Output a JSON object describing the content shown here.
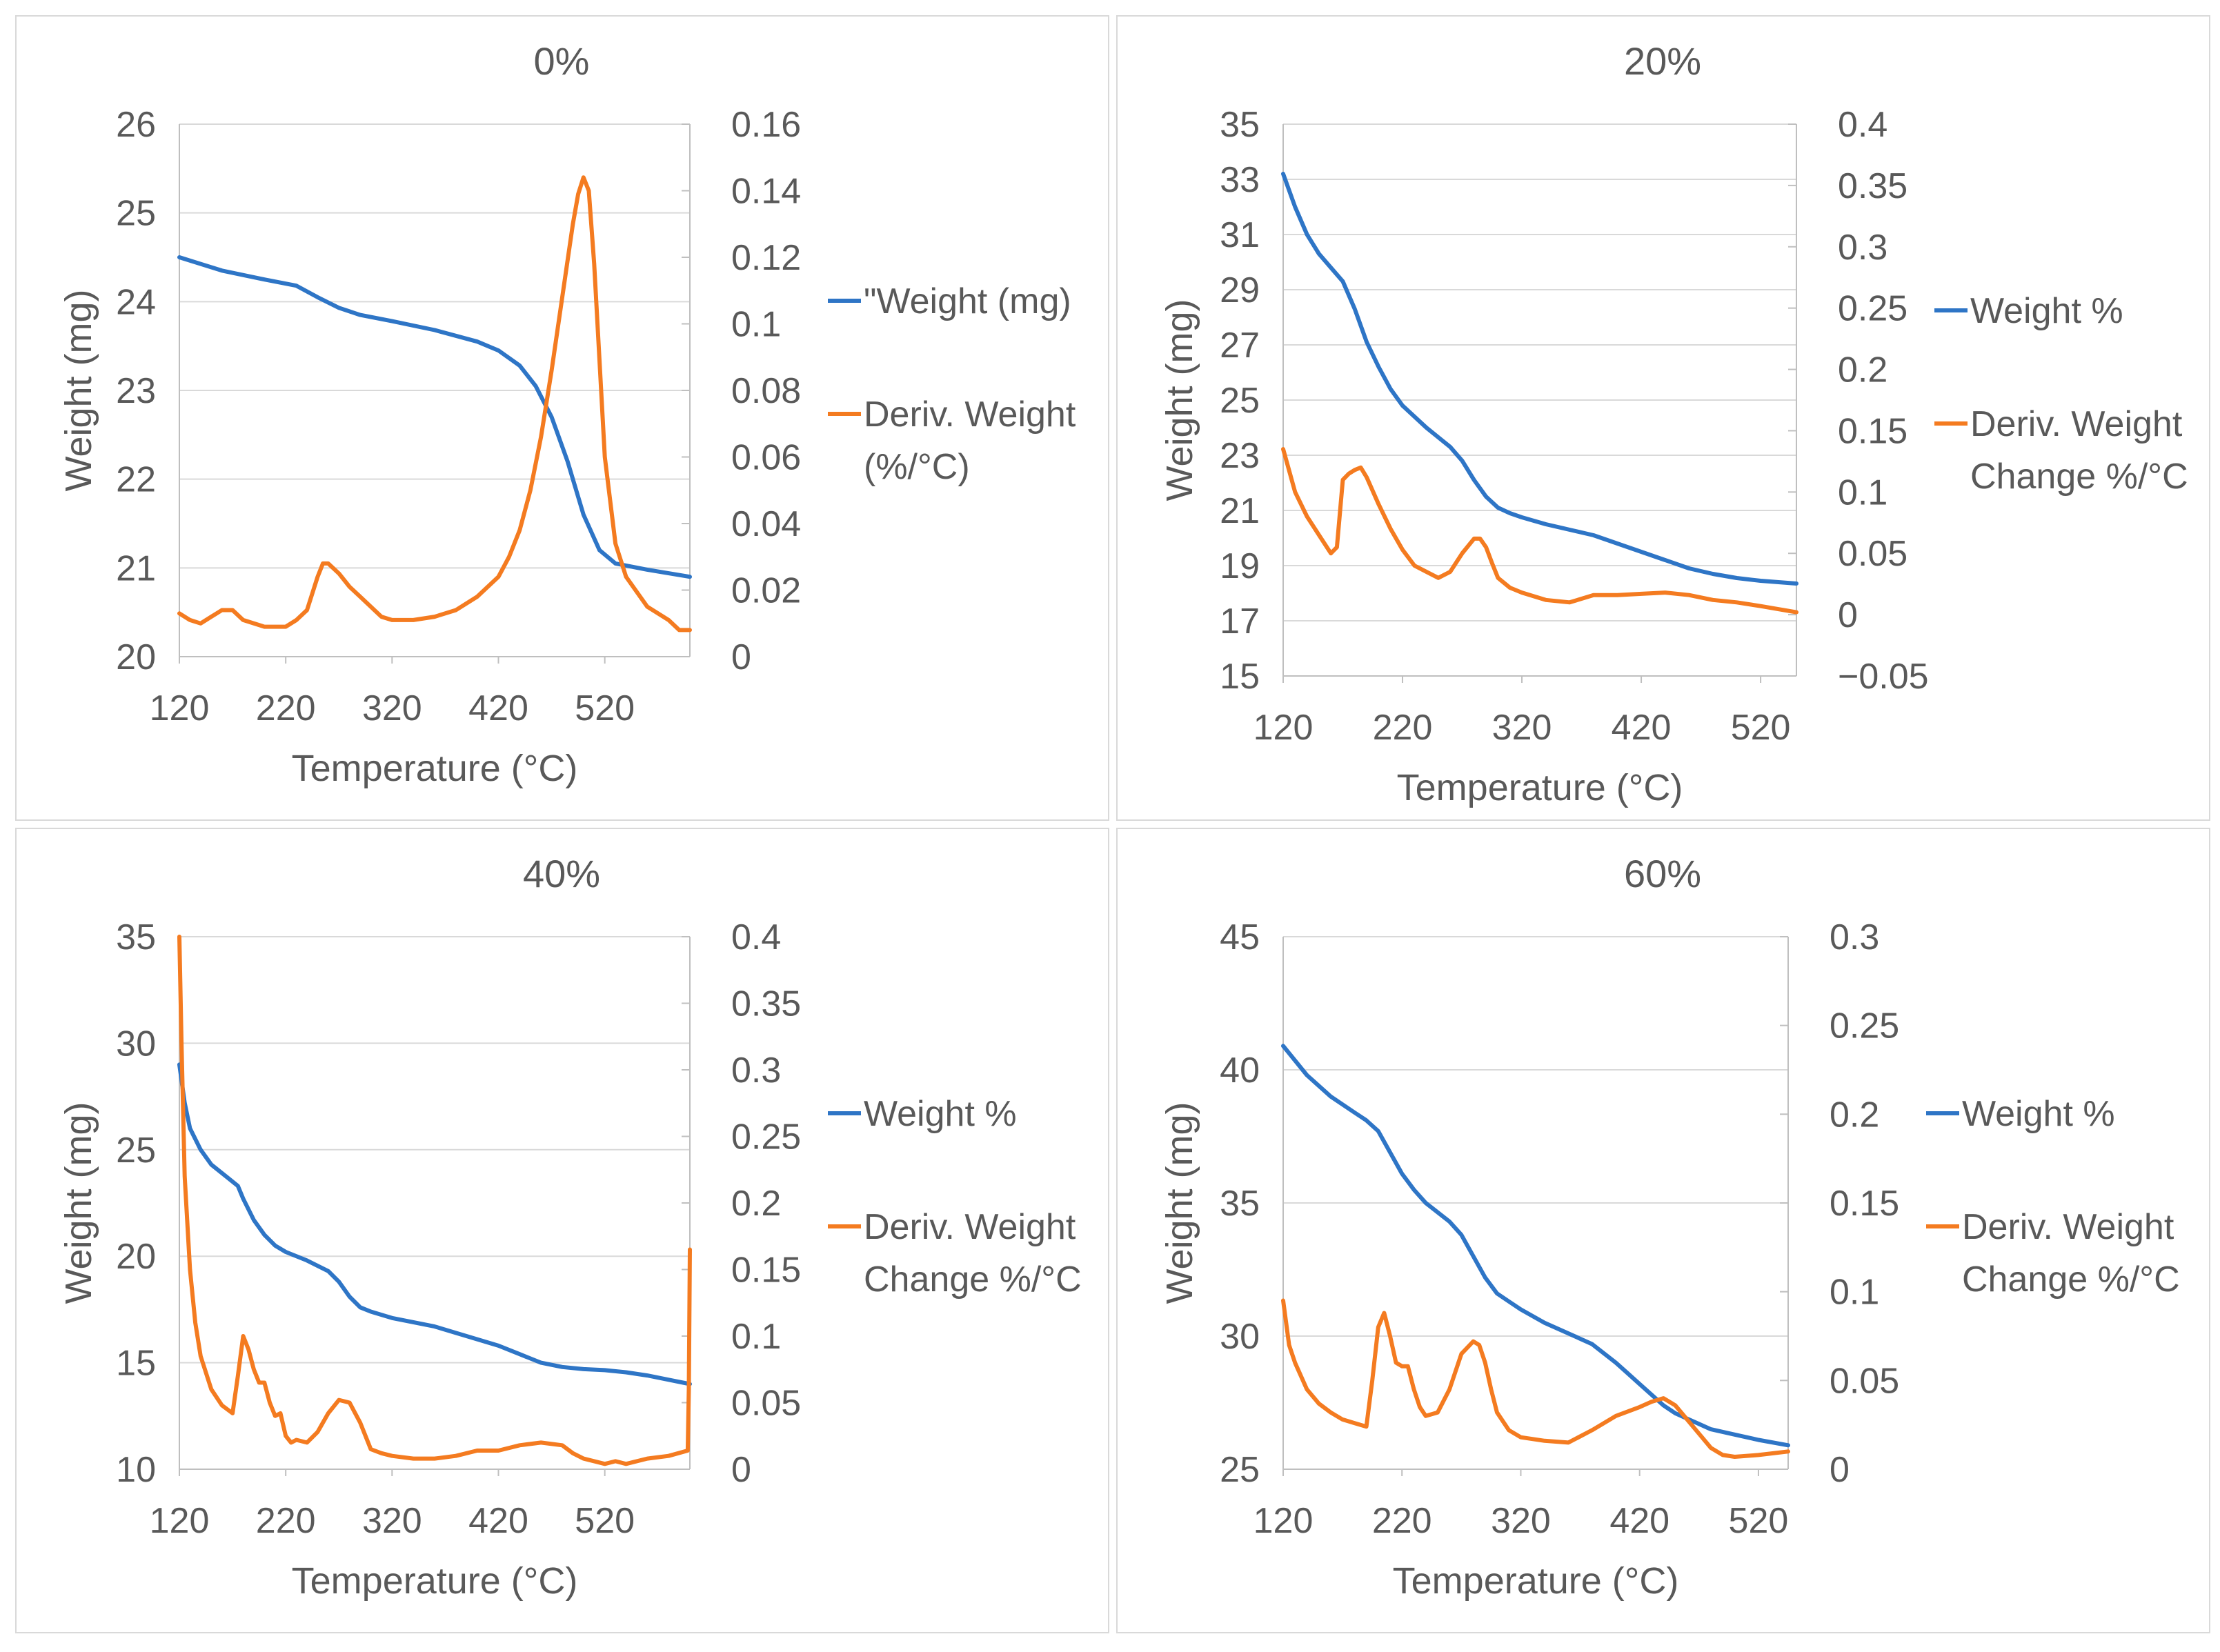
{
  "colors": {
    "weight": "#2e75c6",
    "deriv": "#f47b20"
  },
  "chart_data": [
    {
      "type": "line",
      "title": "0%",
      "xlabel": "Temperature (°C)",
      "ylabel": "Weight (mg)",
      "xlim": [
        120,
        600
      ],
      "ylim": [
        20,
        26
      ],
      "y2lim": [
        0,
        0.16
      ],
      "xticks": [
        "120",
        "220",
        "320",
        "420",
        "520"
      ],
      "yticks": [
        "20",
        "21",
        "22",
        "23",
        "24",
        "25",
        "26"
      ],
      "y2ticks": [
        "0",
        "0.02",
        "0.04",
        "0.06",
        "0.08",
        "0.1",
        "0.12",
        "0.14",
        "0.16"
      ],
      "series": [
        {
          "name": "\"Weight (mg)",
          "axis": "left",
          "color": "#2e75c6",
          "x": [
            120,
            160,
            200,
            230,
            250,
            270,
            290,
            320,
            360,
            400,
            420,
            440,
            455,
            470,
            485,
            500,
            515,
            530,
            560,
            600
          ],
          "y": [
            24.5,
            24.35,
            24.25,
            24.18,
            24.05,
            23.93,
            23.85,
            23.78,
            23.68,
            23.55,
            23.45,
            23.28,
            23.05,
            22.7,
            22.2,
            21.6,
            21.2,
            21.05,
            20.98,
            20.9
          ]
        },
        {
          "name": "Deriv. Weight (%/°C)",
          "axis": "right",
          "color": "#f47b20",
          "x": [
            120,
            130,
            140,
            150,
            160,
            170,
            180,
            200,
            220,
            230,
            240,
            250,
            255,
            260,
            270,
            280,
            290,
            300,
            310,
            320,
            340,
            360,
            380,
            400,
            420,
            430,
            440,
            450,
            460,
            470,
            480,
            490,
            495,
            500,
            505,
            510,
            520,
            530,
            540,
            560,
            580,
            590,
            600
          ],
          "y": [
            0.013,
            0.011,
            0.01,
            0.012,
            0.014,
            0.014,
            0.011,
            0.009,
            0.009,
            0.011,
            0.014,
            0.024,
            0.028,
            0.028,
            0.025,
            0.021,
            0.018,
            0.015,
            0.012,
            0.011,
            0.011,
            0.012,
            0.014,
            0.018,
            0.024,
            0.03,
            0.038,
            0.05,
            0.066,
            0.086,
            0.108,
            0.13,
            0.139,
            0.144,
            0.14,
            0.118,
            0.06,
            0.034,
            0.024,
            0.015,
            0.011,
            0.008,
            0.008
          ]
        }
      ],
      "legend": [
        "\"Weight (mg)",
        "Deriv. Weight",
        "(%/°C)"
      ]
    },
    {
      "type": "line",
      "title": "20%",
      "xlabel": "Temperature (°C)",
      "ylabel": "Weight (mg)",
      "xlim": [
        120,
        550
      ],
      "ylim": [
        15,
        35
      ],
      "y2lim": [
        -0.05,
        0.4
      ],
      "xticks": [
        "120",
        "220",
        "320",
        "420",
        "520"
      ],
      "yticks": [
        "15",
        "17",
        "19",
        "21",
        "23",
        "25",
        "27",
        "29",
        "31",
        "33",
        "35"
      ],
      "y2ticks": [
        "-0.05",
        "0",
        "0.05",
        "0.1",
        "0.15",
        "0.2",
        "0.25",
        "0.3",
        "0.35",
        "0.4"
      ],
      "series": [
        {
          "name": "Weight %",
          "axis": "left",
          "color": "#2e75c6",
          "x": [
            120,
            130,
            140,
            150,
            160,
            170,
            180,
            190,
            200,
            210,
            220,
            240,
            260,
            270,
            280,
            290,
            300,
            310,
            320,
            340,
            360,
            380,
            400,
            420,
            440,
            460,
            480,
            500,
            520,
            550
          ],
          "y": [
            33.2,
            32.0,
            31.0,
            30.3,
            29.8,
            29.3,
            28.3,
            27.1,
            26.2,
            25.4,
            24.8,
            24.0,
            23.3,
            22.8,
            22.1,
            21.5,
            21.1,
            20.9,
            20.75,
            20.5,
            20.3,
            20.1,
            19.8,
            19.5,
            19.2,
            18.9,
            18.7,
            18.55,
            18.45,
            18.35
          ]
        },
        {
          "name": "Deriv. Weight Change %/°C",
          "axis": "right",
          "color": "#f47b20",
          "x": [
            120,
            130,
            140,
            150,
            160,
            165,
            170,
            175,
            180,
            185,
            190,
            200,
            210,
            220,
            230,
            240,
            250,
            260,
            270,
            280,
            285,
            290,
            295,
            300,
            310,
            320,
            340,
            360,
            380,
            400,
            420,
            440,
            460,
            480,
            500,
            520,
            550
          ],
          "y": [
            0.135,
            0.1,
            0.08,
            0.065,
            0.05,
            0.055,
            0.11,
            0.115,
            0.118,
            0.12,
            0.112,
            0.09,
            0.07,
            0.053,
            0.04,
            0.035,
            0.03,
            0.035,
            0.05,
            0.062,
            0.062,
            0.055,
            0.042,
            0.03,
            0.022,
            0.018,
            0.012,
            0.01,
            0.016,
            0.016,
            0.017,
            0.018,
            0.016,
            0.012,
            0.01,
            0.007,
            0.002
          ]
        }
      ],
      "legend": [
        "Weight %",
        "Deriv. Weight",
        "Change %/°C"
      ]
    },
    {
      "type": "line",
      "title": "40%",
      "xlabel": "Temperature (°C)",
      "ylabel": "Weight (mg)",
      "xlim": [
        120,
        600
      ],
      "ylim": [
        10,
        35
      ],
      "y2lim": [
        0,
        0.4
      ],
      "xticks": [
        "120",
        "220",
        "320",
        "420",
        "520"
      ],
      "yticks": [
        "10",
        "15",
        "20",
        "25",
        "30",
        "35"
      ],
      "y2ticks": [
        "0",
        "0.05",
        "0.1",
        "0.15",
        "0.2",
        "0.25",
        "0.3",
        "0.35",
        "0.4"
      ],
      "series": [
        {
          "name": "Weight %",
          "axis": "left",
          "color": "#2e75c6",
          "x": [
            120,
            125,
            130,
            140,
            150,
            165,
            175,
            180,
            190,
            200,
            210,
            220,
            240,
            260,
            270,
            280,
            290,
            300,
            320,
            340,
            360,
            380,
            400,
            420,
            440,
            460,
            480,
            500,
            520,
            540,
            560,
            580,
            600
          ],
          "y": [
            29.0,
            27.2,
            26.0,
            25.0,
            24.3,
            23.7,
            23.3,
            22.7,
            21.7,
            21.0,
            20.5,
            20.2,
            19.8,
            19.3,
            18.8,
            18.1,
            17.6,
            17.4,
            17.1,
            16.9,
            16.7,
            16.4,
            16.1,
            15.8,
            15.4,
            15.0,
            14.8,
            14.7,
            14.65,
            14.55,
            14.4,
            14.2,
            14.0
          ]
        },
        {
          "name": "Deriv. Weight Change %/°C",
          "axis": "right",
          "color": "#f47b20",
          "x": [
            120,
            122,
            125,
            130,
            135,
            140,
            150,
            160,
            170,
            175,
            180,
            185,
            190,
            195,
            200,
            205,
            210,
            215,
            220,
            225,
            230,
            240,
            250,
            260,
            270,
            280,
            290,
            300,
            310,
            320,
            340,
            360,
            380,
            400,
            420,
            440,
            460,
            480,
            490,
            500,
            510,
            520,
            530,
            540,
            560,
            580,
            598,
            599,
            600
          ],
          "y": [
            0.4,
            0.32,
            0.22,
            0.15,
            0.11,
            0.085,
            0.06,
            0.048,
            0.042,
            0.07,
            0.1,
            0.09,
            0.075,
            0.065,
            0.065,
            0.05,
            0.04,
            0.042,
            0.025,
            0.02,
            0.022,
            0.02,
            0.028,
            0.042,
            0.052,
            0.05,
            0.035,
            0.015,
            0.012,
            0.01,
            0.008,
            0.008,
            0.01,
            0.014,
            0.014,
            0.018,
            0.02,
            0.018,
            0.012,
            0.008,
            0.006,
            0.004,
            0.006,
            0.004,
            0.008,
            0.01,
            0.014,
            0.06,
            0.165
          ]
        }
      ],
      "legend": [
        "Weight %",
        "Deriv. Weight",
        "Change %/°C"
      ]
    },
    {
      "type": "line",
      "title": "60%",
      "xlabel": "Temperature (°C)",
      "ylabel": "Weight (mg)",
      "xlim": [
        120,
        545
      ],
      "ylim": [
        25,
        45
      ],
      "y2lim": [
        0,
        0.3
      ],
      "xticks": [
        "120",
        "220",
        "320",
        "420",
        "520"
      ],
      "yticks": [
        "25",
        "30",
        "35",
        "40",
        "45"
      ],
      "y2ticks": [
        "0",
        "0.05",
        "0.1",
        "0.15",
        "0.2",
        "0.25",
        "0.3"
      ],
      "series": [
        {
          "name": "Weight %",
          "axis": "left",
          "color": "#2e75c6",
          "x": [
            120,
            140,
            160,
            180,
            190,
            200,
            210,
            220,
            230,
            240,
            260,
            270,
            280,
            290,
            300,
            310,
            320,
            340,
            360,
            380,
            400,
            410,
            420,
            430,
            440,
            450,
            460,
            470,
            480,
            500,
            520,
            545
          ],
          "y": [
            40.9,
            39.8,
            39.0,
            38.4,
            38.1,
            37.7,
            36.9,
            36.1,
            35.5,
            35.0,
            34.3,
            33.8,
            33.0,
            32.2,
            31.6,
            31.3,
            31.0,
            30.5,
            30.1,
            29.7,
            29.0,
            28.6,
            28.2,
            27.8,
            27.4,
            27.1,
            26.9,
            26.7,
            26.5,
            26.3,
            26.1,
            25.9
          ]
        },
        {
          "name": "Deriv. Weight Change %/°C",
          "axis": "right",
          "color": "#f47b20",
          "x": [
            120,
            125,
            130,
            140,
            150,
            160,
            170,
            180,
            190,
            195,
            200,
            205,
            210,
            215,
            220,
            225,
            230,
            235,
            240,
            250,
            260,
            270,
            280,
            285,
            290,
            295,
            300,
            310,
            320,
            340,
            360,
            380,
            400,
            420,
            430,
            440,
            450,
            460,
            470,
            480,
            490,
            500,
            520,
            545
          ],
          "y": [
            0.095,
            0.07,
            0.06,
            0.045,
            0.037,
            0.032,
            0.028,
            0.026,
            0.024,
            0.05,
            0.08,
            0.088,
            0.075,
            0.06,
            0.058,
            0.058,
            0.045,
            0.035,
            0.03,
            0.032,
            0.045,
            0.065,
            0.072,
            0.07,
            0.06,
            0.045,
            0.032,
            0.022,
            0.018,
            0.016,
            0.015,
            0.022,
            0.03,
            0.035,
            0.038,
            0.04,
            0.036,
            0.028,
            0.02,
            0.012,
            0.008,
            0.007,
            0.008,
            0.01
          ]
        }
      ],
      "legend": [
        "Weight %",
        "Deriv. Weight",
        "Change %/°C"
      ]
    }
  ]
}
